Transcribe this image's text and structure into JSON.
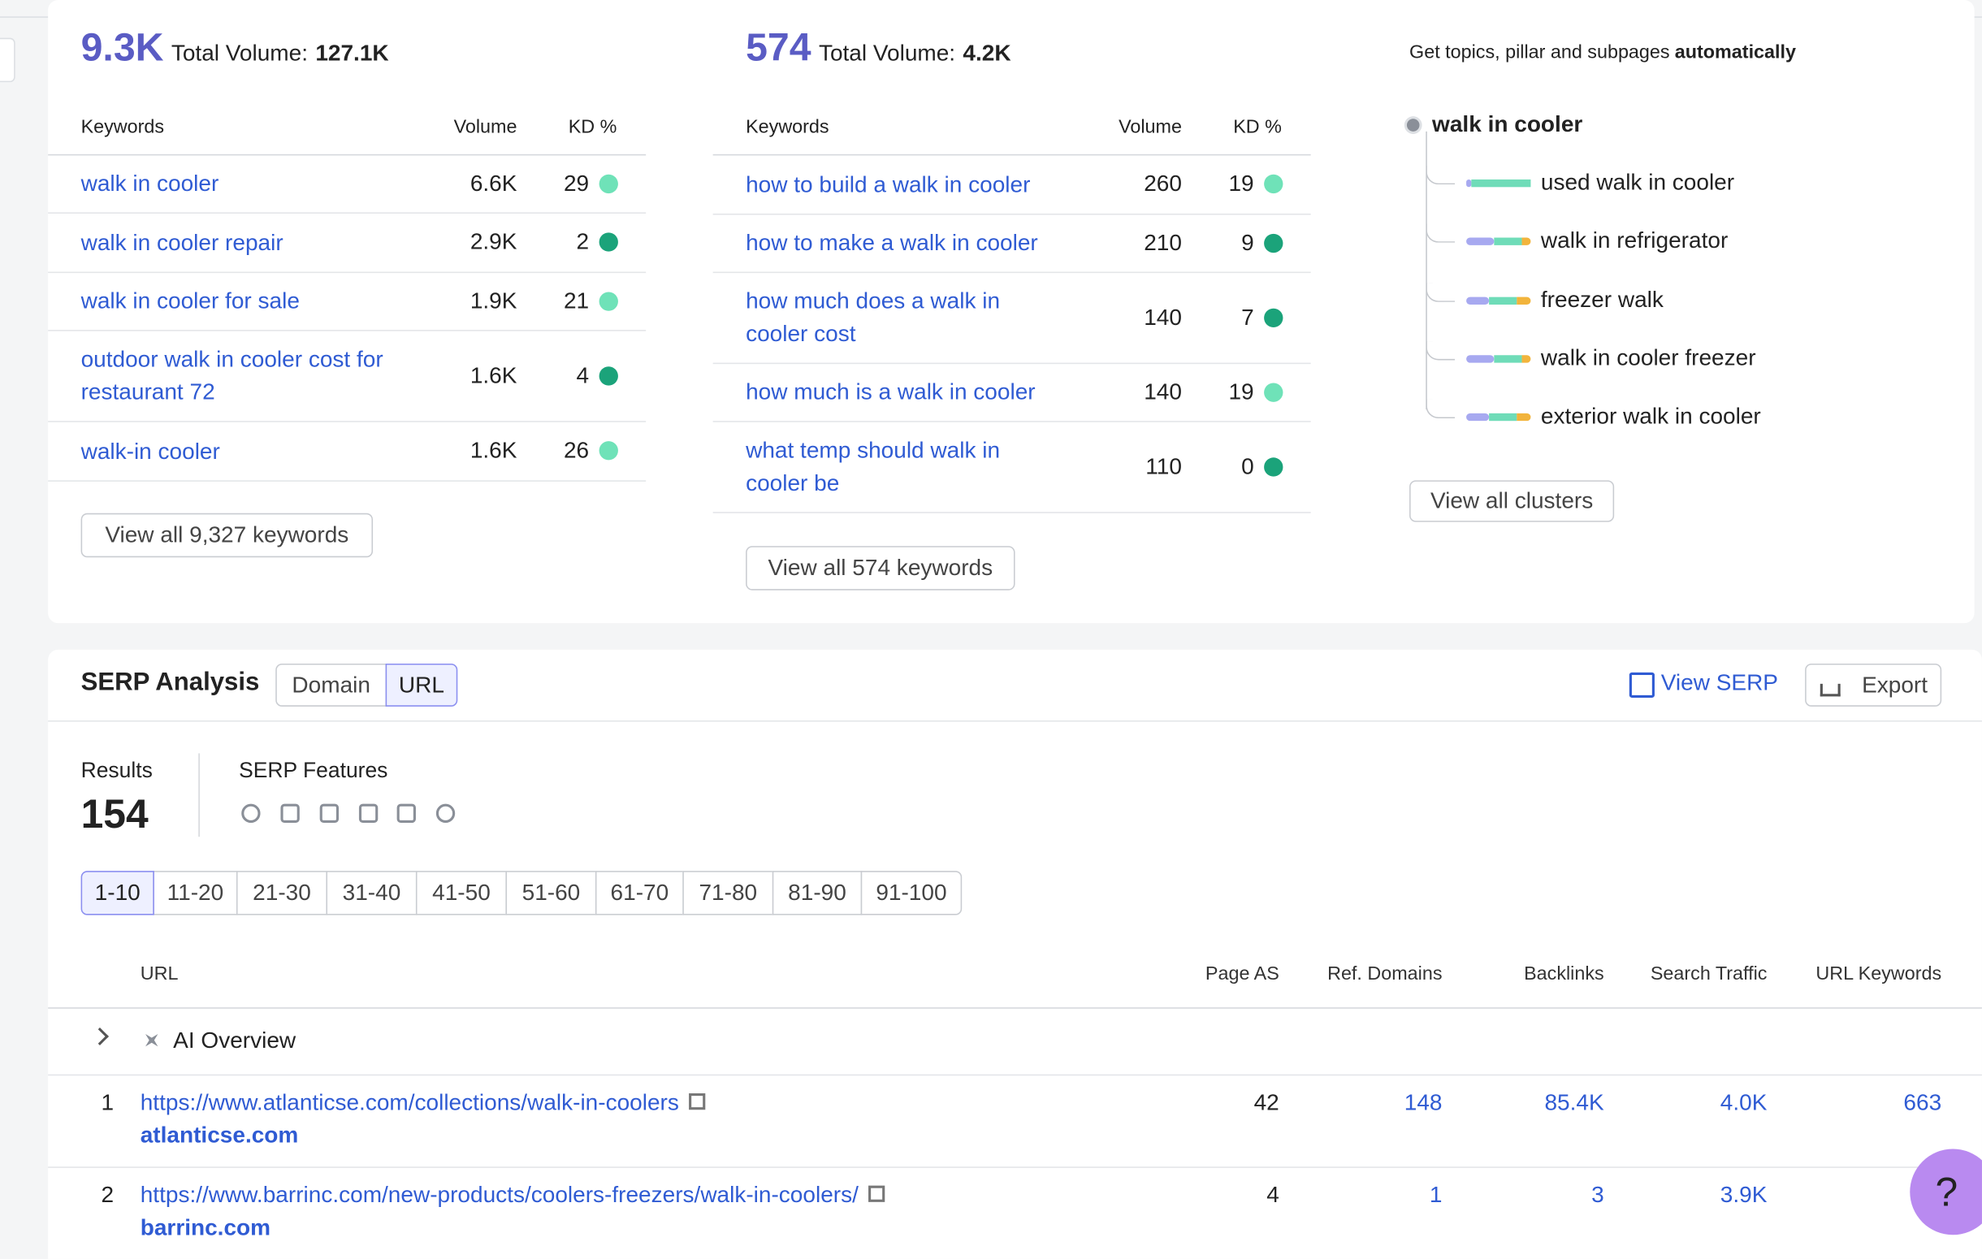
{
  "left_panel": {
    "count": "9.3K",
    "volume_label": "Total Volume:",
    "volume": "127.1K",
    "headers": [
      "Keywords",
      "Volume",
      "KD %"
    ],
    "rows": [
      [
        "walk in cooler",
        "6.6K",
        "29"
      ],
      [
        "walk in cooler repair",
        "2.9K",
        "2"
      ],
      [
        "walk in cooler for sale",
        "1.9K",
        "21"
      ],
      [
        "outdoor walk in cooler cost for restaurant 72",
        "1.6K",
        "4"
      ],
      [
        "walk-in cooler",
        "1.6K",
        "26"
      ]
    ],
    "button": "View all 9,327 keywords"
  },
  "mid_panel": {
    "count": "574",
    "volume_label": "Total Volume:",
    "volume": "4.2K",
    "headers": [
      "Keywords",
      "Volume",
      "KD %"
    ],
    "rows": [
      [
        "how to build a walk in cooler",
        "260",
        "19"
      ],
      [
        "how to make a walk in cooler",
        "210",
        "9"
      ],
      [
        "how much does a walk in cooler cost",
        "140",
        "7"
      ],
      [
        "how much is a walk in cooler",
        "140",
        "19"
      ],
      [
        "what temp should walk in cooler be",
        "110",
        "0"
      ]
    ],
    "button": "View all 574 keywords"
  },
  "clusters": {
    "prompt": "Get topics, pillar and subpages",
    "prompt_bold": "automatically",
    "root": "walk in cooler",
    "items": [
      "used walk in cooler",
      "walk in refrigerator",
      "freezer walk",
      "walk in cooler freezer",
      "exterior walk in cooler"
    ],
    "button": "View all clusters"
  },
  "serp": {
    "title": "SERP Analysis",
    "toggle": [
      "Domain",
      "URL"
    ],
    "view_serp": "View SERP",
    "export": "Export",
    "results_label": "Results",
    "results": "154",
    "features_label": "SERP Features",
    "pages": [
      "1-10",
      "11-20",
      "21-30",
      "31-40",
      "41-50",
      "51-60",
      "61-70",
      "71-80",
      "81-90",
      "91-100"
    ],
    "columns": [
      "URL",
      "Page AS",
      "Ref. Domains",
      "Backlinks",
      "Search Traffic",
      "URL Keywords"
    ],
    "ai_overview": "AI Overview",
    "rows": [
      {
        "rank": "1",
        "url": "https://www.atlanticse.com/collections/walk-in-coolers",
        "domain": "atlanticse.com",
        "page_as": "42",
        "ref_domains": "148",
        "backlinks": "85.4K",
        "search_traffic": "4.0K",
        "url_keywords": "663"
      },
      {
        "rank": "2",
        "url": "https://www.barrinc.com/new-products/coolers-freezers/walk-in-coolers/",
        "domain": "barrinc.com",
        "page_as": "4",
        "ref_domains": "1",
        "backlinks": "3",
        "search_traffic": "3.9K"
      }
    ]
  },
  "help": "?"
}
